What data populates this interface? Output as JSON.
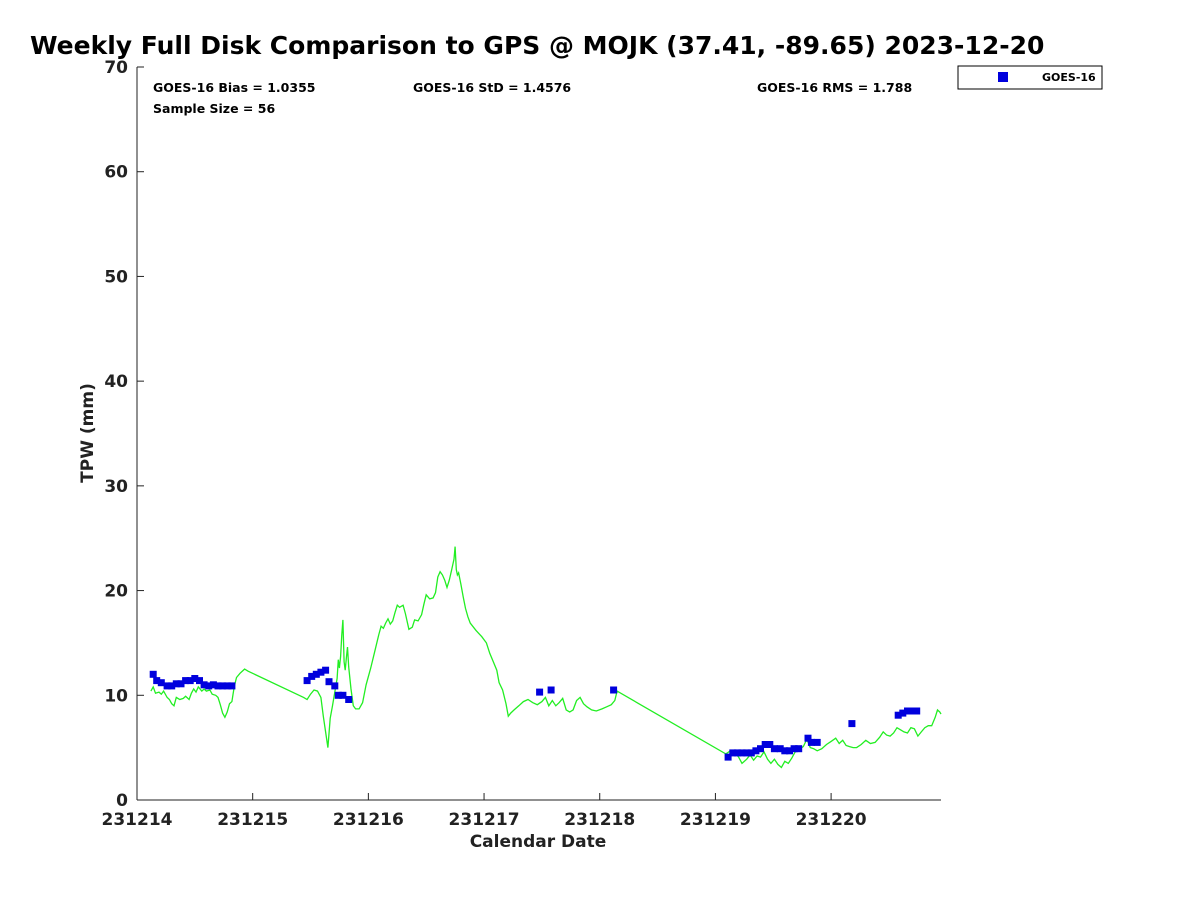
{
  "chart_data": {
    "type": "scatter",
    "title": "Weekly Full Disk Comparison to GPS @ MOJK (37.41, -89.65) 2023-12-20",
    "xlabel": "Calendar Date",
    "ylabel": "TPW (mm)",
    "xlim": [
      0.0,
      6.95
    ],
    "ylim": [
      0,
      70
    ],
    "x_unit": "days after 231214 00 UTC",
    "x_ticks": [
      {
        "value": 0,
        "label": "231214"
      },
      {
        "value": 1,
        "label": "231215"
      },
      {
        "value": 2,
        "label": "231216"
      },
      {
        "value": 3,
        "label": "231217"
      },
      {
        "value": 4,
        "label": "231218"
      },
      {
        "value": 5,
        "label": "231219"
      },
      {
        "value": 6,
        "label": "231220"
      }
    ],
    "y_ticks": [
      0,
      10,
      20,
      30,
      40,
      50,
      60,
      70
    ],
    "stats": {
      "bias": "GOES-16 Bias = 1.0355",
      "std": "GOES-16 StD = 1.4576",
      "rms": "GOES-16 RMS = 1.788",
      "sample": "Sample Size = 56"
    },
    "legend": {
      "position": "top-right-outside",
      "entries": [
        "GOES-16"
      ]
    },
    "colors": {
      "goes": "#0000dd",
      "gps": "#22ee22"
    },
    "series": [
      {
        "name": "GOES-16",
        "kind": "markers",
        "points": [
          [
            0.14,
            12.0
          ],
          [
            0.17,
            11.4
          ],
          [
            0.21,
            11.2
          ],
          [
            0.26,
            10.9
          ],
          [
            0.3,
            10.9
          ],
          [
            0.34,
            11.1
          ],
          [
            0.38,
            11.1
          ],
          [
            0.42,
            11.4
          ],
          [
            0.46,
            11.4
          ],
          [
            0.5,
            11.6
          ],
          [
            0.54,
            11.4
          ],
          [
            0.58,
            11.0
          ],
          [
            0.62,
            10.9
          ],
          [
            0.66,
            11.0
          ],
          [
            0.7,
            10.9
          ],
          [
            0.74,
            10.9
          ],
          [
            0.78,
            10.9
          ],
          [
            0.82,
            10.9
          ],
          [
            1.47,
            11.4
          ],
          [
            1.51,
            11.8
          ],
          [
            1.55,
            12.0
          ],
          [
            1.59,
            12.2
          ],
          [
            1.63,
            12.4
          ],
          [
            1.66,
            11.3
          ],
          [
            1.71,
            10.9
          ],
          [
            1.74,
            10.0
          ],
          [
            1.78,
            10.0
          ],
          [
            1.83,
            9.6
          ],
          [
            3.48,
            10.3
          ],
          [
            3.58,
            10.5
          ],
          [
            4.12,
            10.5
          ],
          [
            5.11,
            4.1
          ],
          [
            5.15,
            4.5
          ],
          [
            5.19,
            4.5
          ],
          [
            5.23,
            4.5
          ],
          [
            5.27,
            4.5
          ],
          [
            5.31,
            4.5
          ],
          [
            5.35,
            4.7
          ],
          [
            5.39,
            4.9
          ],
          [
            5.43,
            5.3
          ],
          [
            5.47,
            5.3
          ],
          [
            5.51,
            4.9
          ],
          [
            5.56,
            4.9
          ],
          [
            5.6,
            4.7
          ],
          [
            5.64,
            4.7
          ],
          [
            5.68,
            4.9
          ],
          [
            5.72,
            4.9
          ],
          [
            5.8,
            5.9
          ],
          [
            5.83,
            5.5
          ],
          [
            5.88,
            5.5
          ],
          [
            6.18,
            7.3
          ],
          [
            6.58,
            8.1
          ],
          [
            6.62,
            8.3
          ],
          [
            6.66,
            8.5
          ],
          [
            6.7,
            8.5
          ],
          [
            6.74,
            8.5
          ]
        ]
      },
      {
        "name": "GPS",
        "kind": "line",
        "points": [
          [
            0.12,
            10.4
          ],
          [
            0.14,
            10.8
          ],
          [
            0.16,
            10.2
          ],
          [
            0.19,
            10.3
          ],
          [
            0.21,
            10.1
          ],
          [
            0.23,
            10.4
          ],
          [
            0.26,
            9.8
          ],
          [
            0.28,
            9.6
          ],
          [
            0.3,
            9.2
          ],
          [
            0.32,
            9.0
          ],
          [
            0.34,
            9.8
          ],
          [
            0.37,
            9.6
          ],
          [
            0.4,
            9.7
          ],
          [
            0.42,
            9.9
          ],
          [
            0.45,
            9.6
          ],
          [
            0.47,
            10.2
          ],
          [
            0.49,
            10.6
          ],
          [
            0.51,
            10.3
          ],
          [
            0.53,
            10.8
          ],
          [
            0.56,
            10.4
          ],
          [
            0.58,
            10.6
          ],
          [
            0.6,
            10.4
          ],
          [
            0.63,
            10.5
          ],
          [
            0.65,
            10.1
          ],
          [
            0.68,
            10.0
          ],
          [
            0.7,
            9.8
          ],
          [
            0.72,
            9.1
          ],
          [
            0.74,
            8.3
          ],
          [
            0.76,
            7.9
          ],
          [
            0.78,
            8.4
          ],
          [
            0.8,
            9.2
          ],
          [
            0.82,
            9.4
          ],
          [
            0.84,
            10.8
          ],
          [
            0.86,
            11.7
          ],
          [
            0.89,
            12.1
          ],
          [
            0.93,
            12.5
          ],
          [
            0.96,
            12.3
          ],
          [
            1.44,
            9.8
          ],
          [
            1.47,
            9.6
          ],
          [
            1.5,
            10.1
          ],
          [
            1.53,
            10.5
          ],
          [
            1.56,
            10.4
          ],
          [
            1.59,
            9.8
          ],
          [
            1.61,
            8.0
          ],
          [
            1.63,
            6.5
          ],
          [
            1.65,
            5.0
          ],
          [
            1.67,
            7.8
          ],
          [
            1.69,
            9.0
          ],
          [
            1.71,
            10.3
          ],
          [
            1.73,
            11.6
          ],
          [
            1.74,
            13.4
          ],
          [
            1.75,
            12.6
          ],
          [
            1.76,
            13.7
          ],
          [
            1.77,
            15.8
          ],
          [
            1.78,
            17.2
          ],
          [
            1.79,
            13.2
          ],
          [
            1.8,
            12.4
          ],
          [
            1.81,
            13.6
          ],
          [
            1.82,
            14.6
          ],
          [
            1.83,
            12.7
          ],
          [
            1.85,
            10.6
          ],
          [
            1.87,
            9.0
          ],
          [
            1.89,
            8.7
          ],
          [
            1.92,
            8.7
          ],
          [
            1.95,
            9.3
          ],
          [
            1.98,
            11.0
          ],
          [
            2.02,
            12.6
          ],
          [
            2.06,
            14.4
          ],
          [
            2.09,
            15.8
          ],
          [
            2.11,
            16.6
          ],
          [
            2.13,
            16.4
          ],
          [
            2.15,
            16.9
          ],
          [
            2.17,
            17.3
          ],
          [
            2.19,
            16.8
          ],
          [
            2.21,
            17.1
          ],
          [
            2.23,
            17.9
          ],
          [
            2.25,
            18.6
          ],
          [
            2.27,
            18.4
          ],
          [
            2.3,
            18.6
          ],
          [
            2.32,
            17.8
          ],
          [
            2.35,
            16.3
          ],
          [
            2.38,
            16.5
          ],
          [
            2.4,
            17.2
          ],
          [
            2.43,
            17.1
          ],
          [
            2.46,
            17.7
          ],
          [
            2.48,
            18.7
          ],
          [
            2.5,
            19.6
          ],
          [
            2.53,
            19.2
          ],
          [
            2.56,
            19.3
          ],
          [
            2.58,
            19.8
          ],
          [
            2.6,
            21.3
          ],
          [
            2.62,
            21.8
          ],
          [
            2.64,
            21.5
          ],
          [
            2.66,
            21.0
          ],
          [
            2.68,
            20.3
          ],
          [
            2.7,
            21.0
          ],
          [
            2.72,
            22.0
          ],
          [
            2.74,
            23.0
          ],
          [
            2.75,
            24.2
          ],
          [
            2.76,
            22.0
          ],
          [
            2.77,
            21.5
          ],
          [
            2.78,
            21.7
          ],
          [
            2.8,
            20.6
          ],
          [
            2.82,
            19.4
          ],
          [
            2.84,
            18.3
          ],
          [
            2.86,
            17.5
          ],
          [
            2.88,
            16.9
          ],
          [
            2.93,
            16.2
          ],
          [
            2.98,
            15.6
          ],
          [
            3.02,
            15.0
          ],
          [
            3.05,
            14.0
          ],
          [
            3.08,
            13.2
          ],
          [
            3.11,
            12.4
          ],
          [
            3.13,
            11.2
          ],
          [
            3.16,
            10.5
          ],
          [
            3.19,
            9.2
          ],
          [
            3.21,
            8.0
          ],
          [
            3.23,
            8.3
          ],
          [
            3.26,
            8.6
          ],
          [
            3.3,
            9.0
          ],
          [
            3.34,
            9.4
          ],
          [
            3.38,
            9.6
          ],
          [
            3.42,
            9.3
          ],
          [
            3.46,
            9.1
          ],
          [
            3.5,
            9.4
          ],
          [
            3.53,
            9.8
          ],
          [
            3.56,
            9.0
          ],
          [
            3.59,
            9.5
          ],
          [
            3.62,
            9.0
          ],
          [
            3.65,
            9.3
          ],
          [
            3.68,
            9.7
          ],
          [
            3.71,
            8.6
          ],
          [
            3.74,
            8.4
          ],
          [
            3.77,
            8.6
          ],
          [
            3.8,
            9.5
          ],
          [
            3.83,
            9.8
          ],
          [
            3.86,
            9.2
          ],
          [
            3.89,
            8.9
          ],
          [
            3.93,
            8.6
          ],
          [
            3.97,
            8.5
          ],
          [
            4.02,
            8.7
          ],
          [
            4.06,
            8.9
          ],
          [
            4.1,
            9.1
          ],
          [
            4.13,
            9.5
          ],
          [
            4.15,
            10.4
          ],
          [
            5.09,
            4.4
          ],
          [
            5.13,
            4.7
          ],
          [
            5.17,
            4.5
          ],
          [
            5.2,
            4.1
          ],
          [
            5.23,
            3.5
          ],
          [
            5.27,
            3.9
          ],
          [
            5.3,
            4.3
          ],
          [
            5.33,
            3.8
          ],
          [
            5.36,
            4.2
          ],
          [
            5.39,
            4.1
          ],
          [
            5.42,
            4.6
          ],
          [
            5.45,
            3.9
          ],
          [
            5.48,
            3.5
          ],
          [
            5.51,
            3.9
          ],
          [
            5.54,
            3.4
          ],
          [
            5.57,
            3.1
          ],
          [
            5.6,
            3.7
          ],
          [
            5.63,
            3.5
          ],
          [
            5.66,
            4.0
          ],
          [
            5.69,
            4.6
          ],
          [
            5.72,
            4.8
          ],
          [
            5.76,
            5.1
          ],
          [
            5.79,
            5.8
          ],
          [
            5.82,
            5.0
          ],
          [
            5.85,
            4.9
          ],
          [
            5.88,
            4.7
          ],
          [
            5.92,
            4.9
          ],
          [
            5.96,
            5.3
          ],
          [
            6.0,
            5.6
          ],
          [
            6.04,
            5.9
          ],
          [
            6.07,
            5.4
          ],
          [
            6.1,
            5.7
          ],
          [
            6.13,
            5.2
          ],
          [
            6.16,
            5.1
          ],
          [
            6.19,
            5.0
          ],
          [
            6.22,
            5.0
          ],
          [
            6.26,
            5.3
          ],
          [
            6.3,
            5.7
          ],
          [
            6.34,
            5.4
          ],
          [
            6.38,
            5.5
          ],
          [
            6.42,
            6.0
          ],
          [
            6.45,
            6.5
          ],
          [
            6.48,
            6.2
          ],
          [
            6.51,
            6.1
          ],
          [
            6.54,
            6.4
          ],
          [
            6.57,
            6.9
          ],
          [
            6.6,
            6.7
          ],
          [
            6.63,
            6.5
          ],
          [
            6.66,
            6.4
          ],
          [
            6.69,
            6.9
          ],
          [
            6.72,
            6.8
          ],
          [
            6.75,
            6.1
          ],
          [
            6.78,
            6.5
          ],
          [
            6.81,
            6.9
          ],
          [
            6.84,
            7.1
          ],
          [
            6.87,
            7.1
          ],
          [
            6.9,
            7.9
          ],
          [
            6.92,
            8.6
          ],
          [
            6.94,
            8.4
          ],
          [
            6.95,
            8.2
          ]
        ]
      }
    ]
  }
}
